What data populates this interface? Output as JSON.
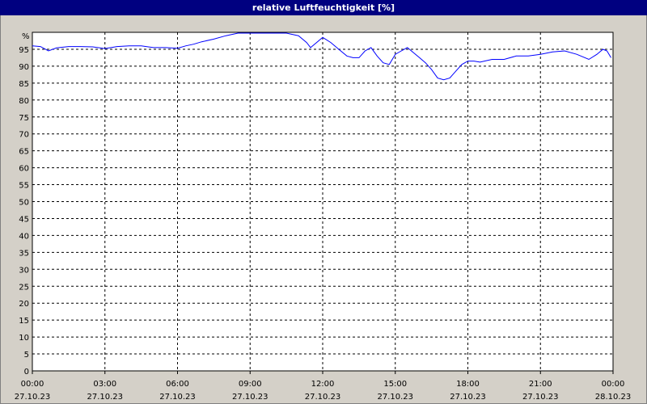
{
  "window": {
    "title": "relative Luftfeuchtigkeit [%]"
  },
  "chart_data": {
    "type": "line",
    "title": "relative Luftfeuchtigkeit [%]",
    "y_unit_label": "%",
    "ylim": [
      0,
      100
    ],
    "yticks": [
      0,
      5,
      10,
      15,
      20,
      25,
      30,
      35,
      40,
      45,
      50,
      55,
      60,
      65,
      70,
      75,
      80,
      85,
      90,
      95
    ],
    "xlim": [
      "2023-10-27 00:00",
      "2023-10-28 00:00"
    ],
    "xticks": [
      {
        "time": "00:00",
        "date": "27.10.23"
      },
      {
        "time": "03:00",
        "date": "27.10.23"
      },
      {
        "time": "06:00",
        "date": "27.10.23"
      },
      {
        "time": "09:00",
        "date": "27.10.23"
      },
      {
        "time": "12:00",
        "date": "27.10.23"
      },
      {
        "time": "15:00",
        "date": "27.10.23"
      },
      {
        "time": "18:00",
        "date": "27.10.23"
      },
      {
        "time": "21:00",
        "date": "27.10.23"
      },
      {
        "time": "00:00",
        "date": "28.10.23"
      }
    ],
    "grid": true,
    "series": [
      {
        "color": "#0000ff",
        "x": [
          "00:00",
          "00:20",
          "00:40",
          "01:00",
          "01:30",
          "02:00",
          "02:30",
          "03:00",
          "03:30",
          "04:00",
          "04:30",
          "05:00",
          "05:30",
          "06:00",
          "06:20",
          "06:40",
          "07:00",
          "07:30",
          "08:00",
          "08:30",
          "09:00",
          "09:30",
          "10:00",
          "10:15",
          "10:30",
          "11:00",
          "11:20",
          "11:30",
          "11:45",
          "12:00",
          "12:20",
          "12:40",
          "13:00",
          "13:15",
          "13:30",
          "13:45",
          "14:00",
          "14:15",
          "14:30",
          "14:45",
          "15:00",
          "15:15",
          "15:30",
          "15:45",
          "16:00",
          "16:15",
          "16:30",
          "16:45",
          "17:00",
          "17:15",
          "17:30",
          "17:45",
          "18:00",
          "18:15",
          "18:30",
          "19:00",
          "19:30",
          "20:00",
          "20:30",
          "21:00",
          "21:30",
          "22:00",
          "22:30",
          "23:00",
          "23:20",
          "23:35",
          "23:45",
          "23:55"
        ],
        "y": [
          96,
          95.8,
          94.5,
          95.4,
          95.8,
          95.8,
          95.7,
          95.2,
          95.8,
          96,
          96,
          95.5,
          95.5,
          95.3,
          96,
          96.5,
          97.2,
          98,
          99,
          100,
          100,
          100,
          100.5,
          100.2,
          100,
          99,
          97,
          95.5,
          97,
          98.5,
          97,
          95,
          93,
          92.5,
          92.5,
          94.5,
          95.5,
          93,
          91,
          90.5,
          93.5,
          94.5,
          95.5,
          94,
          92.5,
          91,
          89,
          86.5,
          86,
          86.5,
          88.5,
          90.5,
          91.5,
          91.5,
          91.2,
          92,
          92,
          93,
          93,
          93.5,
          94.2,
          94.5,
          93.5,
          92,
          93.5,
          95,
          94.5,
          92.5
        ]
      }
    ]
  }
}
